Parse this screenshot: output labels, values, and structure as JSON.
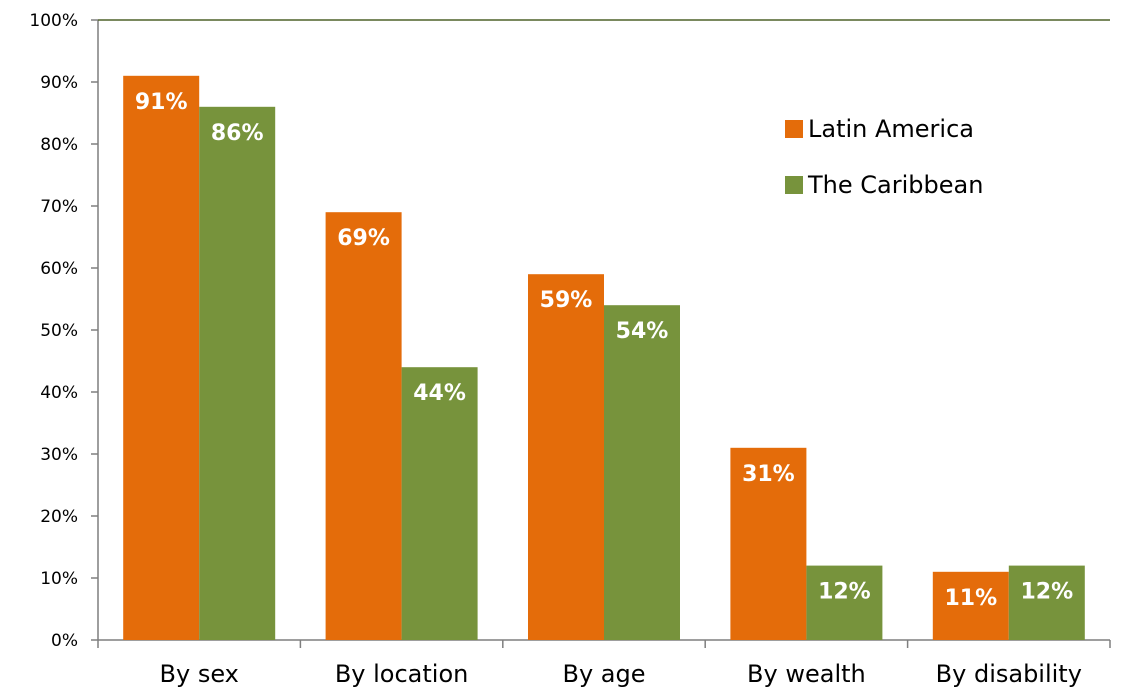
{
  "chart_data": {
    "type": "bar",
    "categories": [
      "By sex",
      "By location",
      "By age",
      "By wealth",
      "By disability"
    ],
    "series": [
      {
        "name": "Latin America",
        "color": "#e46c0a",
        "values": [
          91,
          69,
          59,
          31,
          11
        ],
        "labels": [
          "91%",
          "69%",
          "59%",
          "31%",
          "11%"
        ]
      },
      {
        "name": "The Caribbean",
        "color": "#77933c",
        "values": [
          86,
          44,
          54,
          12,
          12
        ],
        "labels": [
          "86%",
          "44%",
          "54%",
          "12%",
          "12%"
        ]
      }
    ],
    "y_ticks": [
      "0%",
      "10%",
      "20%",
      "30%",
      "40%",
      "50%",
      "60%",
      "70%",
      "80%",
      "90%",
      "100%"
    ],
    "ylim": [
      0,
      100
    ],
    "title": "",
    "xlabel": "",
    "ylabel": "",
    "legend_position": "top-right",
    "grid": false
  }
}
